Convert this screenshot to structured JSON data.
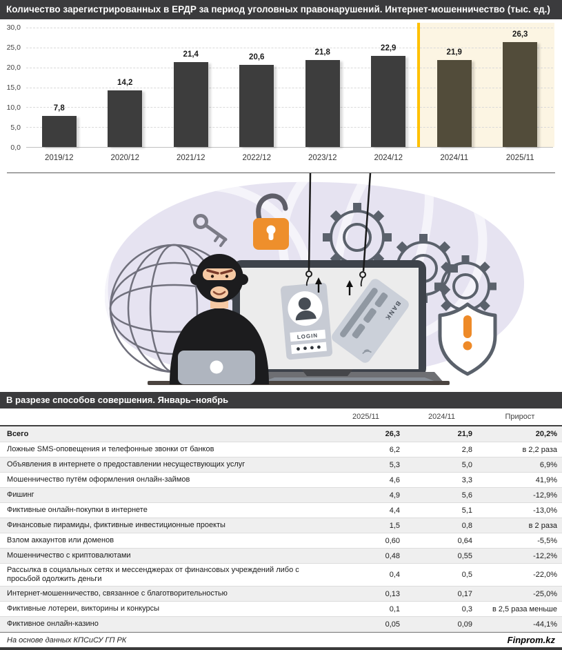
{
  "title": "Количество зарегистрированных в ЕРДР за период уголовных правонарушений. Интернет-мошенничество (тыс. ед.)",
  "chart_data": {
    "type": "bar",
    "categories": [
      "2019/12",
      "2020/12",
      "2021/12",
      "2022/12",
      "2023/12",
      "2024/12",
      "2024/11",
      "2025/11"
    ],
    "values": [
      7.8,
      14.2,
      21.4,
      20.6,
      21.8,
      22.9,
      21.9,
      26.3
    ],
    "value_labels": [
      "7,8",
      "14,2",
      "21,4",
      "20,6",
      "21,8",
      "22,9",
      "21,9",
      "26,3"
    ],
    "highlight_from_index": 6,
    "ylim": [
      0,
      30
    ],
    "ytick_values": [
      30,
      25,
      20,
      15,
      10,
      5,
      0
    ],
    "ytick_labels": [
      "30,0",
      "25,0",
      "20,0",
      "15,0",
      "10,0",
      "5,0",
      "0,0"
    ],
    "grid": "horizontal-dashed",
    "legend": "none",
    "bar_color": "#3d3d3d",
    "highlight_bar_color": "#524c3a",
    "highlight_bg": "#fcf5e3",
    "highlight_line_color": "#ffc000"
  },
  "illustration": {
    "description": "hacker in balaclava at laptop, monitor with phished id-card and bank card on fishing hooks, globe, gears, padlock, key, alert shield",
    "id_card_login_label": "LOGIN",
    "bank_card_label": "BANK",
    "accent_orange": "#ee8f2c",
    "lavender": "#e6e3f1"
  },
  "section2": {
    "title": "В разрезе способов совершения. Январь–ноябрь"
  },
  "table": {
    "columns": [
      "2025/11",
      "2024/11",
      "Прирост"
    ],
    "total_row": {
      "label": "Всего",
      "v1": "26,3",
      "v2": "21,9",
      "growth": "20,2%"
    },
    "rows": [
      {
        "label": "Ложные SMS-оповещения и телефонные звонки от банков",
        "v1": "6,2",
        "v2": "2,8",
        "growth": "в 2,2 раза"
      },
      {
        "label": "Объявления в интернете о предоставлении несуществующих услуг",
        "v1": "5,3",
        "v2": "5,0",
        "growth": "6,9%"
      },
      {
        "label": "Мошенничество путём оформления онлайн-займов",
        "v1": "4,6",
        "v2": "3,3",
        "growth": "41,9%"
      },
      {
        "label": "Фишинг",
        "v1": "4,9",
        "v2": "5,6",
        "growth": "-12,9%"
      },
      {
        "label": "Фиктивные онлайн-покупки в интернете",
        "v1": "4,4",
        "v2": "5,1",
        "growth": "-13,0%"
      },
      {
        "label": "Финансовые пирамиды, фиктивные инвестиционные проекты",
        "v1": "1,5",
        "v2": "0,8",
        "growth": "в 2 раза"
      },
      {
        "label": "Взлом аккаунтов или доменов",
        "v1": "0,60",
        "v2": "0,64",
        "growth": "-5,5%"
      },
      {
        "label": "Мошенничество с криптовалютами",
        "v1": "0,48",
        "v2": "0,55",
        "growth": "-12,2%"
      },
      {
        "label": "Рассылка в социальных сетях и мессенджерах от финансовых учреждений либо с просьбой одолжить деньги",
        "v1": "0,4",
        "v2": "0,5",
        "growth": "-22,0%"
      },
      {
        "label": "Интернет-мошенничество, связанное с благотворительностью",
        "v1": "0,13",
        "v2": "0,17",
        "growth": "-25,0%"
      },
      {
        "label": "Фиктивные лотереи, викторины и конкурсы",
        "v1": "0,1",
        "v2": "0,3",
        "growth": "в 2,5 раза меньше"
      },
      {
        "label": "Фиктивное онлайн-казино",
        "v1": "0,05",
        "v2": "0,09",
        "growth": "-44,1%"
      }
    ]
  },
  "footer": {
    "source": "На основе данных КПСиСУ ГП РК",
    "brand": "Finprom.kz"
  }
}
